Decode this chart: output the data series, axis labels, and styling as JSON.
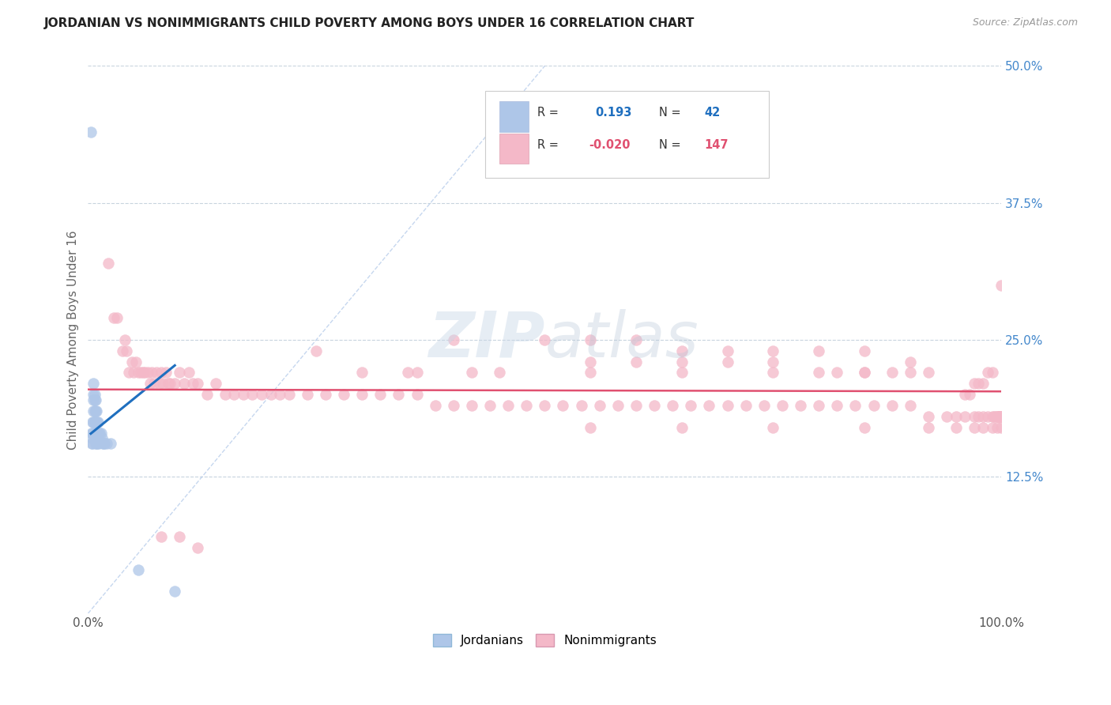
{
  "title": "JORDANIAN VS NONIMMIGRANTS CHILD POVERTY AMONG BOYS UNDER 16 CORRELATION CHART",
  "source": "Source: ZipAtlas.com",
  "ylabel": "Child Poverty Among Boys Under 16",
  "xlim": [
    0,
    1.0
  ],
  "ylim": [
    0,
    0.5
  ],
  "xtick_positions": [
    0.0,
    0.1,
    0.2,
    0.3,
    0.4,
    0.5,
    0.6,
    0.7,
    0.8,
    0.9,
    1.0
  ],
  "xticklabels": [
    "0.0%",
    "",
    "",
    "",
    "",
    "",
    "",
    "",
    "",
    "",
    "100.0%"
  ],
  "ytick_positions": [
    0.0,
    0.125,
    0.25,
    0.375,
    0.5
  ],
  "ytick_labels_right": [
    "",
    "12.5%",
    "25.0%",
    "37.5%",
    "50.0%"
  ],
  "r_jordanian": 0.193,
  "n_jordanian": 42,
  "r_nonimmigrant": -0.02,
  "n_nonimmigrant": 147,
  "color_jordanian": "#aec6e8",
  "color_nonimmigrant": "#f4b8c8",
  "color_line_jordanian": "#1f6fbf",
  "color_line_nonimmigrant": "#e05070",
  "color_diagonal": "#aec6e8",
  "jordanian_x": [
    0.003,
    0.004,
    0.004,
    0.004,
    0.005,
    0.005,
    0.005,
    0.006,
    0.006,
    0.006,
    0.006,
    0.006,
    0.007,
    0.007,
    0.007,
    0.007,
    0.008,
    0.008,
    0.008,
    0.008,
    0.008,
    0.009,
    0.009,
    0.009,
    0.009,
    0.01,
    0.01,
    0.01,
    0.011,
    0.011,
    0.012,
    0.012,
    0.013,
    0.014,
    0.015,
    0.016,
    0.017,
    0.018,
    0.02,
    0.025,
    0.055,
    0.095
  ],
  "jordanian_y": [
    0.44,
    0.165,
    0.16,
    0.155,
    0.175,
    0.165,
    0.155,
    0.21,
    0.2,
    0.195,
    0.185,
    0.175,
    0.2,
    0.195,
    0.185,
    0.175,
    0.195,
    0.185,
    0.175,
    0.165,
    0.155,
    0.185,
    0.175,
    0.165,
    0.155,
    0.175,
    0.165,
    0.155,
    0.175,
    0.165,
    0.165,
    0.155,
    0.165,
    0.165,
    0.16,
    0.155,
    0.155,
    0.155,
    0.155,
    0.155,
    0.04,
    0.02
  ],
  "nonimmigrant_x": [
    0.022,
    0.028,
    0.032,
    0.038,
    0.04,
    0.042,
    0.045,
    0.048,
    0.05,
    0.052,
    0.055,
    0.058,
    0.06,
    0.062,
    0.065,
    0.068,
    0.07,
    0.072,
    0.075,
    0.078,
    0.08,
    0.082,
    0.085,
    0.088,
    0.09,
    0.095,
    0.1,
    0.105,
    0.11,
    0.115,
    0.12,
    0.13,
    0.14,
    0.15,
    0.16,
    0.17,
    0.18,
    0.19,
    0.2,
    0.21,
    0.22,
    0.24,
    0.26,
    0.28,
    0.3,
    0.32,
    0.34,
    0.36,
    0.38,
    0.4,
    0.42,
    0.44,
    0.46,
    0.48,
    0.5,
    0.52,
    0.54,
    0.56,
    0.58,
    0.6,
    0.62,
    0.64,
    0.66,
    0.68,
    0.7,
    0.72,
    0.74,
    0.76,
    0.78,
    0.8,
    0.82,
    0.84,
    0.86,
    0.88,
    0.9,
    0.92,
    0.94,
    0.95,
    0.96,
    0.97,
    0.975,
    0.98,
    0.985,
    0.99,
    0.992,
    0.994,
    0.995,
    0.996,
    0.997,
    0.998,
    0.999,
    0.999,
    0.999,
    1.0,
    1.0,
    1.0,
    0.36,
    0.42,
    0.3,
    0.25,
    0.08,
    0.1,
    0.12,
    0.35,
    0.45,
    0.55,
    0.65,
    0.75,
    0.85,
    0.55,
    0.6,
    0.65,
    0.7,
    0.75,
    0.8,
    0.82,
    0.85,
    0.88,
    0.9,
    0.92,
    0.4,
    0.5,
    0.55,
    0.6,
    0.65,
    0.7,
    0.75,
    0.8,
    0.85,
    0.9,
    0.55,
    0.65,
    0.75,
    0.85,
    0.92,
    0.95,
    0.97,
    0.98,
    0.99,
    0.995,
    0.99,
    0.985,
    0.98,
    0.975,
    0.97,
    0.965,
    0.96
  ],
  "nonimmigrant_y": [
    0.32,
    0.27,
    0.27,
    0.24,
    0.25,
    0.24,
    0.22,
    0.23,
    0.22,
    0.23,
    0.22,
    0.22,
    0.22,
    0.22,
    0.22,
    0.21,
    0.22,
    0.21,
    0.22,
    0.21,
    0.22,
    0.21,
    0.22,
    0.21,
    0.21,
    0.21,
    0.22,
    0.21,
    0.22,
    0.21,
    0.21,
    0.2,
    0.21,
    0.2,
    0.2,
    0.2,
    0.2,
    0.2,
    0.2,
    0.2,
    0.2,
    0.2,
    0.2,
    0.2,
    0.2,
    0.2,
    0.2,
    0.2,
    0.19,
    0.19,
    0.19,
    0.19,
    0.19,
    0.19,
    0.19,
    0.19,
    0.19,
    0.19,
    0.19,
    0.19,
    0.19,
    0.19,
    0.19,
    0.19,
    0.19,
    0.19,
    0.19,
    0.19,
    0.19,
    0.19,
    0.19,
    0.19,
    0.19,
    0.19,
    0.19,
    0.18,
    0.18,
    0.18,
    0.18,
    0.18,
    0.18,
    0.18,
    0.18,
    0.18,
    0.18,
    0.18,
    0.18,
    0.18,
    0.18,
    0.18,
    0.18,
    0.18,
    0.18,
    0.18,
    0.17,
    0.3,
    0.22,
    0.22,
    0.22,
    0.24,
    0.07,
    0.07,
    0.06,
    0.22,
    0.22,
    0.22,
    0.22,
    0.22,
    0.22,
    0.23,
    0.23,
    0.23,
    0.23,
    0.23,
    0.22,
    0.22,
    0.22,
    0.22,
    0.22,
    0.22,
    0.25,
    0.25,
    0.25,
    0.25,
    0.24,
    0.24,
    0.24,
    0.24,
    0.24,
    0.23,
    0.17,
    0.17,
    0.17,
    0.17,
    0.17,
    0.17,
    0.17,
    0.17,
    0.17,
    0.17,
    0.22,
    0.22,
    0.21,
    0.21,
    0.21,
    0.2,
    0.2
  ]
}
